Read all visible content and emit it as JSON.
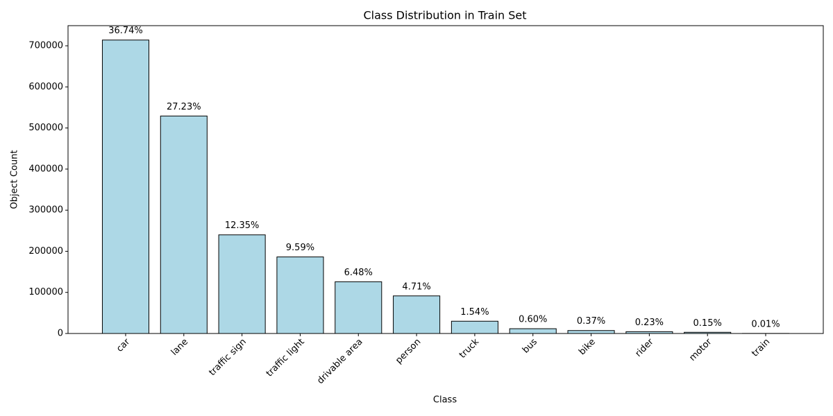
{
  "chart_data": {
    "type": "bar",
    "title": "Class Distribution in Train Set",
    "xlabel": "Class",
    "ylabel": "Object Count",
    "categories": [
      "car",
      "lane",
      "traffic sign",
      "traffic light",
      "drivable area",
      "person",
      "truck",
      "bus",
      "bike",
      "rider",
      "motor",
      "train"
    ],
    "values": [
      714000,
      529200,
      240000,
      186300,
      125900,
      91500,
      29900,
      11660,
      7190,
      4470,
      2915,
      194
    ],
    "value_labels": [
      "36.74%",
      "27.23%",
      "12.35%",
      "9.59%",
      "6.48%",
      "4.71%",
      "1.54%",
      "0.60%",
      "0.37%",
      "0.23%",
      "0.15%",
      "0.01%"
    ],
    "color": "#add8e6",
    "edgecolor": "#000000",
    "ylim": [
      0,
      749000
    ],
    "yticks": [
      0,
      100000,
      200000,
      300000,
      400000,
      500000,
      600000,
      700000
    ],
    "grid": false
  }
}
